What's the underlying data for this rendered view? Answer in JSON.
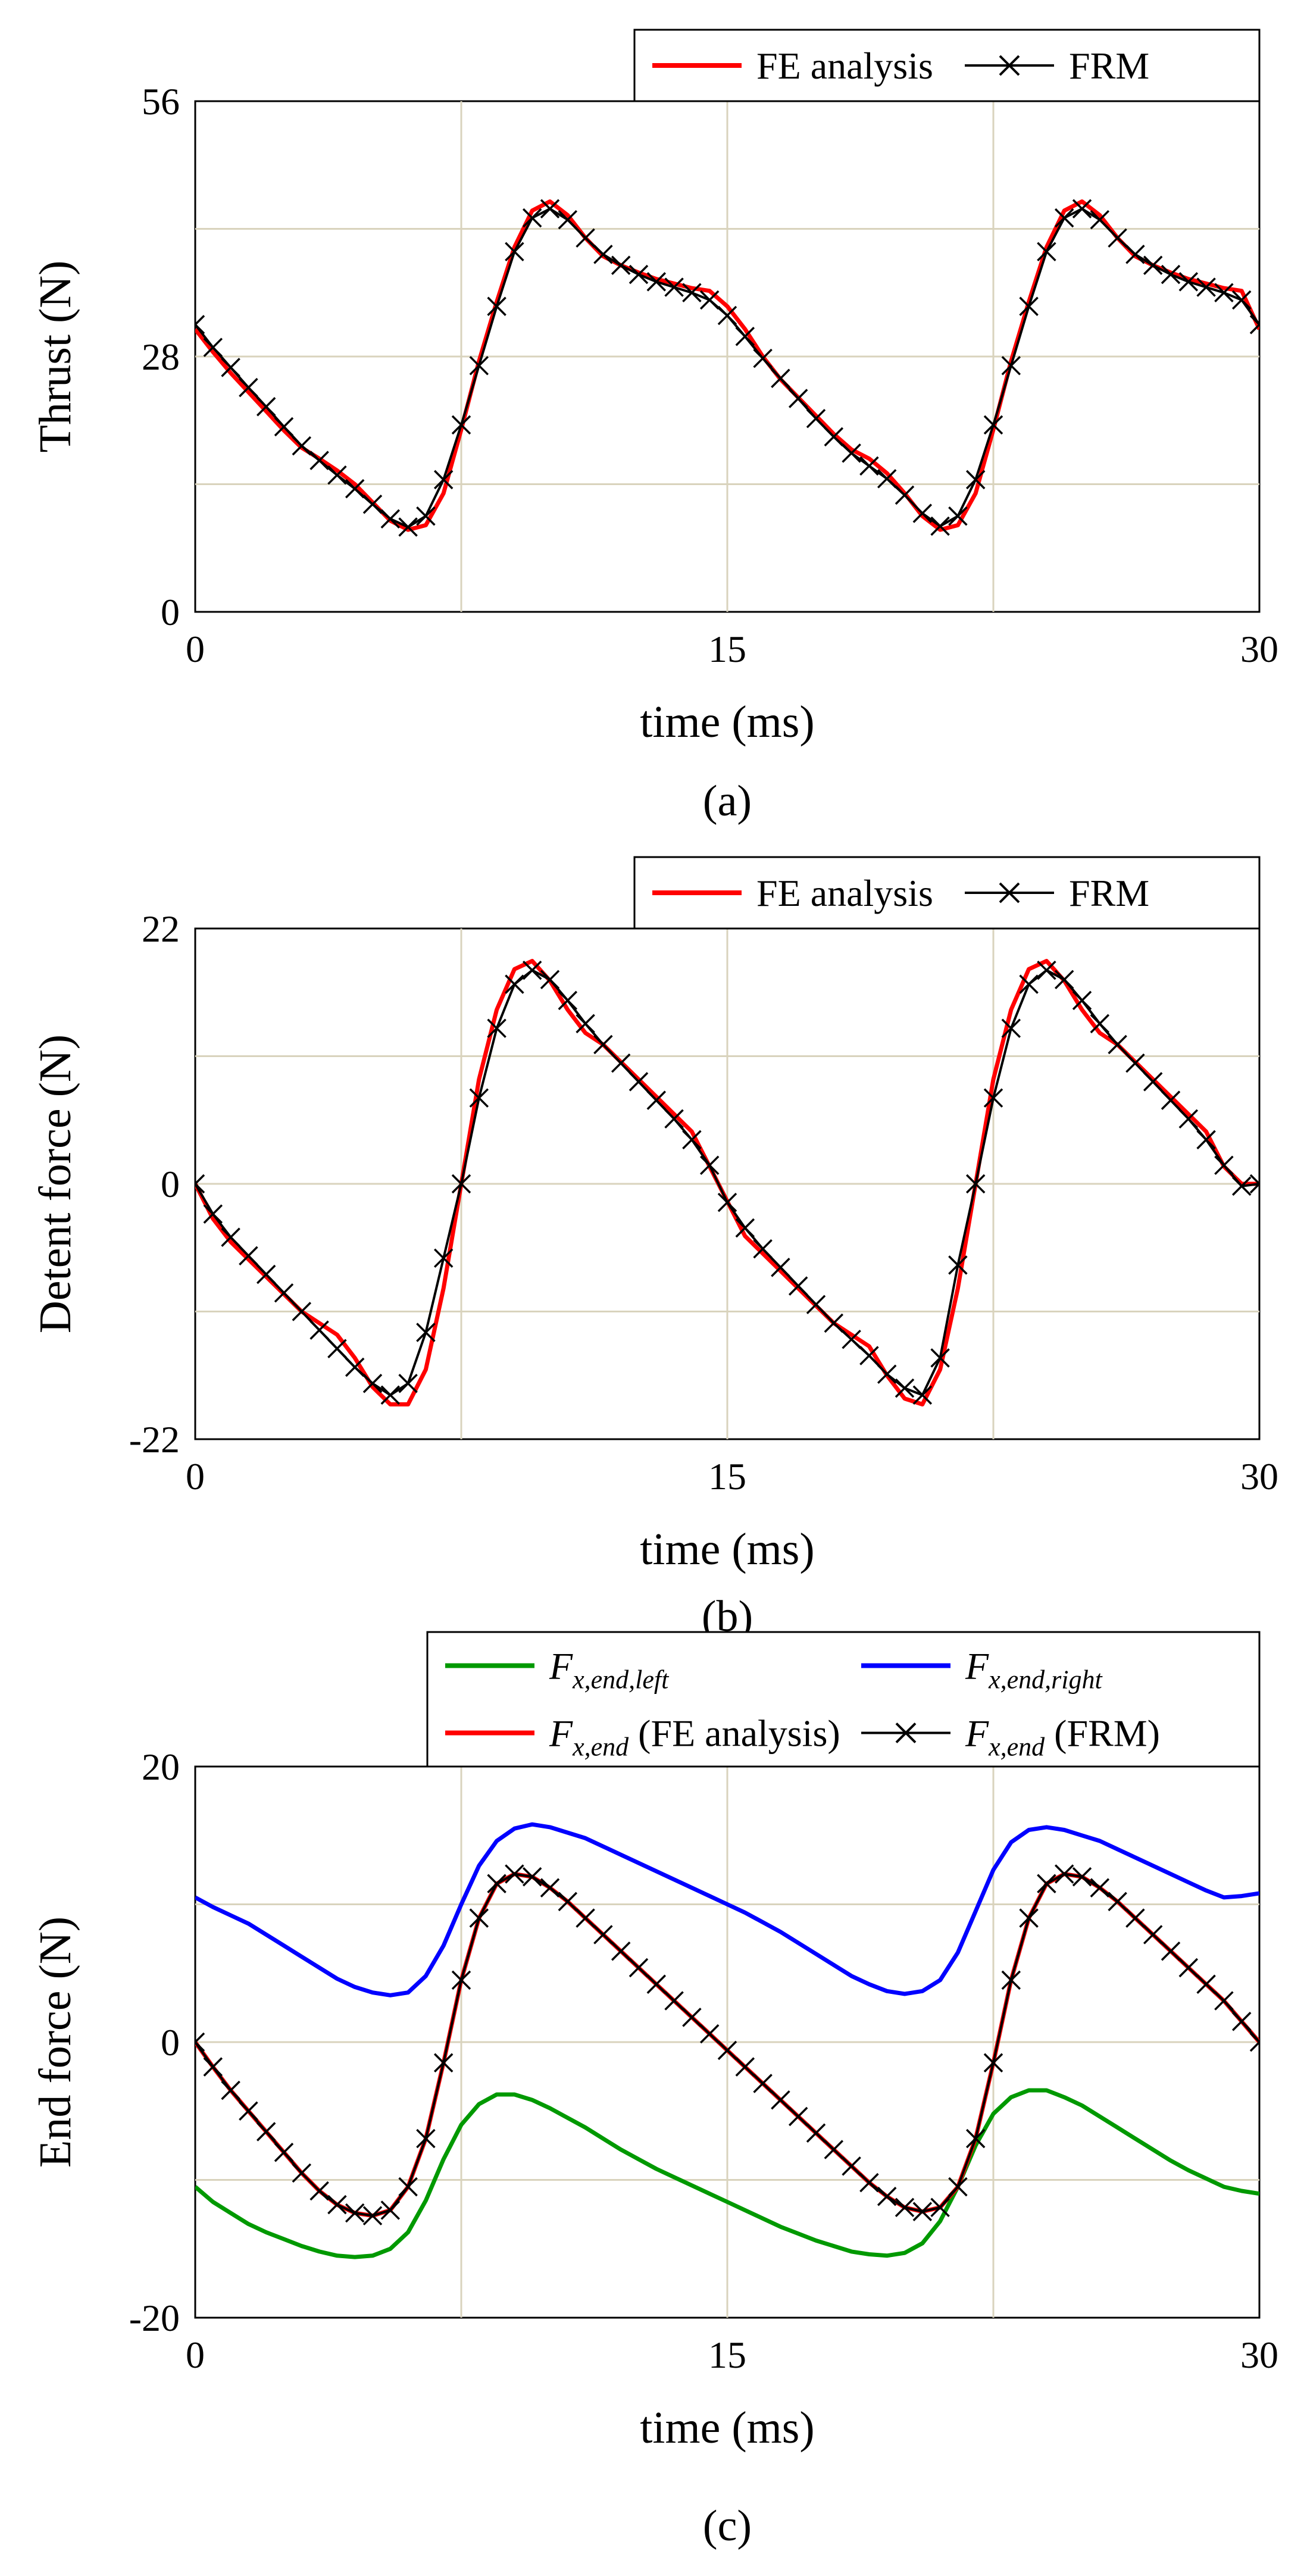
{
  "figure": {
    "captions": [
      "(a)",
      "(b)",
      "(c)"
    ]
  },
  "chart_data": [
    {
      "type": "line",
      "panel": "a",
      "caption": "(a)",
      "xlabel": "time (ms)",
      "ylabel": "Thrust (N)",
      "xlim": [
        0,
        30
      ],
      "ylim": [
        0,
        56
      ],
      "xticks": [
        "0",
        "15",
        "30"
      ],
      "yticks": [
        "0",
        "28",
        "56"
      ],
      "grid": true,
      "legend": {
        "placement": "top-right",
        "entries": [
          {
            "label": "FE analysis",
            "color": "#ff0000",
            "marker": "none"
          },
          {
            "label": "FRM",
            "color": "#000000",
            "marker": "x"
          }
        ]
      },
      "x": [
        0,
        0.5,
        1,
        1.5,
        2,
        2.5,
        3,
        3.5,
        4,
        4.5,
        5,
        5.5,
        6,
        6.5,
        7,
        7.5,
        8,
        8.5,
        9,
        9.5,
        10,
        10.5,
        11,
        11.5,
        12,
        12.5,
        13,
        13.5,
        14,
        14.5,
        15,
        15.5,
        16,
        16.5,
        17,
        17.5,
        18,
        18.5,
        19,
        19.5,
        20,
        20.5,
        21,
        21.5,
        22,
        22.5,
        23,
        23.5,
        24,
        24.5,
        25,
        25.5,
        26,
        26.5,
        27,
        27.5,
        28,
        28.5,
        29,
        29.5,
        30
      ],
      "series": [
        {
          "name": "FE analysis",
          "color": "#ff0000",
          "values": [
            31.0,
            28.5,
            26.2,
            24.1,
            22.0,
            19.9,
            18.0,
            16.8,
            15.5,
            14.0,
            12.0,
            10.0,
            9.0,
            9.5,
            13.0,
            20.0,
            27.5,
            34.0,
            40.0,
            44.0,
            45.0,
            43.5,
            41.0,
            39.0,
            38.0,
            37.2,
            36.5,
            36.0,
            35.5,
            35.2,
            33.5,
            31.0,
            28.0,
            25.5,
            23.5,
            21.5,
            19.5,
            17.8,
            16.8,
            15.2,
            13.0,
            10.5,
            9.0,
            9.5,
            13.0,
            20.0,
            27.5,
            34.0,
            40.0,
            44.0,
            45.0,
            43.5,
            41.0,
            39.0,
            38.0,
            37.2,
            36.5,
            36.0,
            35.5,
            35.2,
            31.0
          ]
        },
        {
          "name": "FRM",
          "color": "#000000",
          "marker": "x",
          "values": [
            31.5,
            29.0,
            26.8,
            24.6,
            22.5,
            20.3,
            18.2,
            16.6,
            15.0,
            13.5,
            11.8,
            10.2,
            9.3,
            10.5,
            14.5,
            20.5,
            27.0,
            33.5,
            39.5,
            43.2,
            44.2,
            43.0,
            41.0,
            39.2,
            38.0,
            37.0,
            36.2,
            35.6,
            35.0,
            34.2,
            32.5,
            30.2,
            27.8,
            25.6,
            23.4,
            21.2,
            19.2,
            17.4,
            16.0,
            14.6,
            12.8,
            10.8,
            9.4,
            10.5,
            14.5,
            20.5,
            27.0,
            33.5,
            39.5,
            43.2,
            44.2,
            43.0,
            41.0,
            39.2,
            38.0,
            37.0,
            36.2,
            35.6,
            35.0,
            34.2,
            31.5
          ]
        }
      ]
    },
    {
      "type": "line",
      "panel": "b",
      "caption": "(b)",
      "xlabel": "time (ms)",
      "ylabel": "Detent force (N)",
      "xlim": [
        0,
        30
      ],
      "ylim": [
        -22,
        22
      ],
      "xticks": [
        "0",
        "15",
        "30"
      ],
      "yticks": [
        "-22",
        "0",
        "22"
      ],
      "grid": true,
      "legend": {
        "placement": "top-right",
        "entries": [
          {
            "label": "FE analysis",
            "color": "#ff0000",
            "marker": "none"
          },
          {
            "label": "FRM",
            "color": "#000000",
            "marker": "x"
          }
        ]
      },
      "x": [
        0,
        0.5,
        1,
        1.5,
        2,
        2.5,
        3,
        3.5,
        4,
        4.5,
        5,
        5.5,
        6,
        6.5,
        7,
        7.5,
        8,
        8.5,
        9,
        9.5,
        10,
        10.5,
        11,
        11.5,
        12,
        12.5,
        13,
        13.5,
        14,
        14.5,
        15,
        15.5,
        16,
        16.5,
        17,
        17.5,
        18,
        18.5,
        19,
        19.5,
        20,
        20.5,
        21,
        21.5,
        22,
        22.5,
        23,
        23.5,
        24,
        24.5,
        25,
        25.5,
        26,
        26.5,
        27,
        27.5,
        28,
        28.5,
        29,
        29.5,
        30
      ],
      "series": [
        {
          "name": "FE analysis",
          "color": "#ff0000",
          "values": [
            0.0,
            -3.0,
            -5.0,
            -6.5,
            -8.0,
            -9.5,
            -11.0,
            -12.0,
            -13.0,
            -15.0,
            -17.5,
            -19.0,
            -19.0,
            -16.0,
            -9.0,
            0.0,
            9.0,
            15.0,
            18.5,
            19.2,
            17.5,
            15.0,
            13.0,
            12.0,
            10.5,
            9.0,
            7.5,
            6.0,
            4.5,
            1.5,
            -1.5,
            -4.5,
            -6.0,
            -7.5,
            -9.0,
            -10.5,
            -12.0,
            -13.0,
            -14.0,
            -16.5,
            -18.5,
            -19.0,
            -16.0,
            -9.0,
            0.0,
            9.0,
            15.0,
            18.5,
            19.2,
            17.5,
            15.0,
            13.0,
            12.0,
            10.5,
            9.0,
            7.5,
            6.0,
            4.5,
            1.5,
            0.0,
            0.0
          ]
        },
        {
          "name": "FRM",
          "color": "#000000",
          "marker": "x",
          "values": [
            0.0,
            -2.6,
            -4.6,
            -6.2,
            -7.8,
            -9.4,
            -11.0,
            -12.6,
            -14.2,
            -15.8,
            -17.2,
            -18.2,
            -17.2,
            -12.8,
            -6.4,
            0.0,
            7.4,
            13.4,
            17.2,
            18.4,
            17.6,
            15.8,
            13.8,
            12.0,
            10.4,
            8.8,
            7.2,
            5.6,
            3.8,
            1.6,
            -1.6,
            -3.8,
            -5.6,
            -7.2,
            -8.8,
            -10.4,
            -12.0,
            -13.4,
            -14.8,
            -16.4,
            -17.6,
            -18.2,
            -15.0,
            -7.0,
            0.0,
            7.4,
            13.4,
            17.2,
            18.4,
            17.6,
            15.8,
            13.8,
            12.0,
            10.4,
            8.8,
            7.2,
            5.6,
            3.8,
            1.6,
            -0.2,
            0.0
          ]
        }
      ]
    },
    {
      "type": "line",
      "panel": "c",
      "caption": "(c)",
      "xlabel": "time (ms)",
      "ylabel": "End force (N)",
      "xlim": [
        0,
        30
      ],
      "ylim": [
        -20,
        20
      ],
      "xticks": [
        "0",
        "15",
        "30"
      ],
      "yticks": [
        "-20",
        "0",
        "20"
      ],
      "grid": true,
      "legend": {
        "placement": "top",
        "entries": [
          {
            "symbol": "F",
            "sub": "x,end,left",
            "suffix": "",
            "color": "#009900",
            "marker": "none"
          },
          {
            "symbol": "F",
            "sub": "x,end,right",
            "suffix": "",
            "color": "#0000ff",
            "marker": "none"
          },
          {
            "symbol": "F",
            "sub": "x,end",
            "suffix": " (FE analysis)",
            "color": "#ff0000",
            "marker": "none"
          },
          {
            "symbol": "F",
            "sub": "x,end",
            "suffix": " (FRM)",
            "color": "#000000",
            "marker": "x"
          }
        ]
      },
      "x": [
        0,
        0.5,
        1,
        1.5,
        2,
        2.5,
        3,
        3.5,
        4,
        4.5,
        5,
        5.5,
        6,
        6.5,
        7,
        7.5,
        8,
        8.5,
        9,
        9.5,
        10,
        10.5,
        11,
        11.5,
        12,
        12.5,
        13,
        13.5,
        14,
        14.5,
        15,
        15.5,
        16,
        16.5,
        17,
        17.5,
        18,
        18.5,
        19,
        19.5,
        20,
        20.5,
        21,
        21.5,
        22,
        22.5,
        23,
        23.5,
        24,
        24.5,
        25,
        25.5,
        26,
        26.5,
        27,
        27.5,
        28,
        28.5,
        29,
        29.5,
        30
      ],
      "series": [
        {
          "name": "F_x,end,left",
          "color": "#009900",
          "values": [
            -10.5,
            -11.6,
            -12.4,
            -13.2,
            -13.8,
            -14.3,
            -14.8,
            -15.2,
            -15.5,
            -15.6,
            -15.5,
            -15.0,
            -13.8,
            -11.5,
            -8.5,
            -6.0,
            -4.5,
            -3.8,
            -3.8,
            -4.2,
            -4.8,
            -5.5,
            -6.2,
            -7.0,
            -7.8,
            -8.5,
            -9.2,
            -9.8,
            -10.4,
            -11.0,
            -11.6,
            -12.2,
            -12.8,
            -13.4,
            -13.9,
            -14.4,
            -14.8,
            -15.2,
            -15.4,
            -15.5,
            -15.3,
            -14.6,
            -13.0,
            -10.5,
            -7.5,
            -5.2,
            -4.0,
            -3.5,
            -3.5,
            -4.0,
            -4.6,
            -5.4,
            -6.2,
            -7.0,
            -7.8,
            -8.6,
            -9.3,
            -9.9,
            -10.5,
            -10.8,
            -11.0
          ]
        },
        {
          "name": "F_x,end,right",
          "color": "#0000ff",
          "values": [
            10.5,
            9.8,
            9.2,
            8.6,
            7.8,
            7.0,
            6.2,
            5.4,
            4.6,
            4.0,
            3.6,
            3.4,
            3.6,
            4.8,
            7.0,
            10.0,
            12.8,
            14.6,
            15.5,
            15.8,
            15.6,
            15.2,
            14.8,
            14.2,
            13.6,
            13.0,
            12.4,
            11.8,
            11.2,
            10.6,
            10.0,
            9.4,
            8.7,
            8.0,
            7.2,
            6.4,
            5.6,
            4.8,
            4.2,
            3.7,
            3.5,
            3.7,
            4.5,
            6.5,
            9.5,
            12.5,
            14.5,
            15.4,
            15.6,
            15.4,
            15.0,
            14.6,
            14.0,
            13.4,
            12.8,
            12.2,
            11.6,
            11.0,
            10.5,
            10.6,
            10.8
          ]
        },
        {
          "name": "F_x,end (FE analysis)",
          "color": "#ff0000",
          "values": [
            0.0,
            -1.8,
            -3.5,
            -5.0,
            -6.5,
            -8.0,
            -9.5,
            -10.8,
            -11.8,
            -12.4,
            -12.6,
            -12.2,
            -10.5,
            -7.0,
            -1.5,
            4.5,
            9.0,
            11.5,
            12.2,
            12.0,
            11.2,
            10.2,
            9.0,
            7.8,
            6.6,
            5.4,
            4.2,
            3.0,
            1.8,
            0.6,
            -0.6,
            -1.8,
            -3.0,
            -4.2,
            -5.4,
            -6.6,
            -7.8,
            -9.0,
            -10.2,
            -11.2,
            -12.0,
            -12.3,
            -12.0,
            -10.5,
            -7.0,
            -1.5,
            4.5,
            9.0,
            11.5,
            12.2,
            12.0,
            11.2,
            10.2,
            9.0,
            7.8,
            6.6,
            5.4,
            4.2,
            3.0,
            1.5,
            0.0
          ]
        },
        {
          "name": "F_x,end (FRM)",
          "color": "#000000",
          "marker": "x",
          "values": [
            0.0,
            -1.8,
            -3.5,
            -5.0,
            -6.5,
            -8.0,
            -9.5,
            -10.8,
            -11.8,
            -12.4,
            -12.6,
            -12.2,
            -10.5,
            -7.0,
            -1.5,
            4.5,
            9.0,
            11.5,
            12.2,
            12.0,
            11.2,
            10.2,
            9.0,
            7.8,
            6.6,
            5.4,
            4.2,
            3.0,
            1.8,
            0.6,
            -0.6,
            -1.8,
            -3.0,
            -4.2,
            -5.4,
            -6.6,
            -7.8,
            -9.0,
            -10.2,
            -11.2,
            -12.0,
            -12.3,
            -12.0,
            -10.5,
            -7.0,
            -1.5,
            4.5,
            9.0,
            11.5,
            12.2,
            12.0,
            11.2,
            10.2,
            9.0,
            7.8,
            6.6,
            5.4,
            4.2,
            3.0,
            1.5,
            0.0
          ]
        }
      ]
    }
  ]
}
